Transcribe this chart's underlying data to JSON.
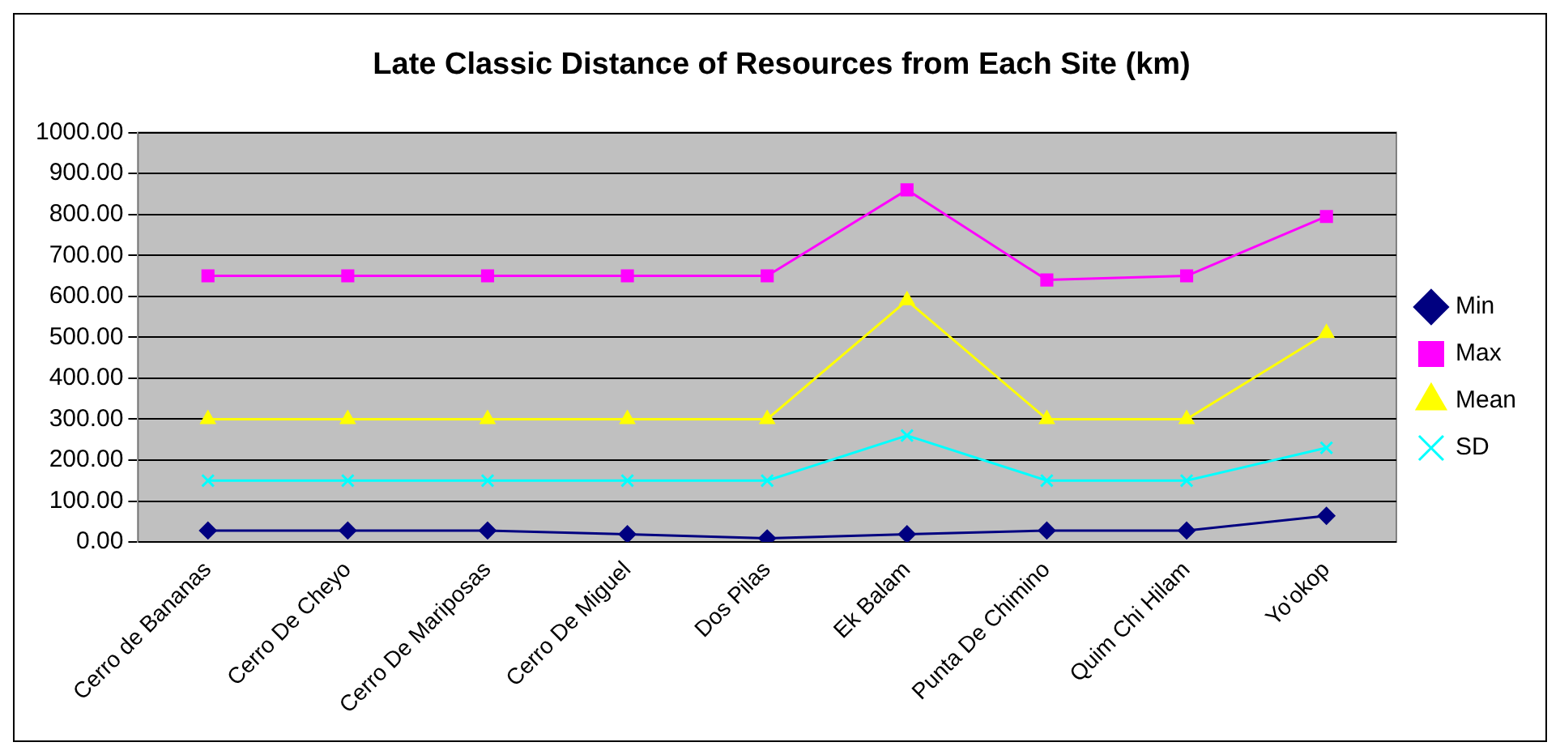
{
  "chart_data": {
    "type": "line",
    "title": "Late Classic Distance of Resources from Each Site (km)",
    "categories": [
      "Cerro de Bananas",
      "Cerro De Cheyo",
      "Cerro De Mariposas",
      "Cerro De Miguel",
      "Dos Pilas",
      "Ek Balam",
      "Punta De Chimino",
      "Quim Chi Hilam",
      "Yo'okop"
    ],
    "series": [
      {
        "name": "Min",
        "color": "#000080",
        "marker": "diamond",
        "values": [
          28,
          28,
          28,
          19,
          9,
          19,
          28,
          28,
          64
        ]
      },
      {
        "name": "Max",
        "color": "#ff00ff",
        "marker": "square",
        "values": [
          650,
          650,
          650,
          650,
          650,
          860,
          640,
          650,
          795
        ]
      },
      {
        "name": "Mean",
        "color": "#ffff00",
        "marker": "triangle",
        "values": [
          300,
          300,
          300,
          300,
          300,
          590,
          300,
          300,
          510
        ]
      },
      {
        "name": "SD",
        "color": "#00ffff",
        "marker": "cross",
        "values": [
          150,
          150,
          150,
          150,
          150,
          260,
          150,
          150,
          230
        ]
      }
    ],
    "ylim": [
      0,
      1000
    ],
    "yticks": [
      {
        "value": 0,
        "label": "0.00"
      },
      {
        "value": 100,
        "label": "100.00"
      },
      {
        "value": 200,
        "label": "200.00"
      },
      {
        "value": 300,
        "label": "300.00"
      },
      {
        "value": 400,
        "label": "400.00"
      },
      {
        "value": 500,
        "label": "500.00"
      },
      {
        "value": 600,
        "label": "600.00"
      },
      {
        "value": 700,
        "label": "700.00"
      },
      {
        "value": 800,
        "label": "800.00"
      },
      {
        "value": 900,
        "label": "900.00"
      },
      {
        "value": 1000,
        "label": "1000.00"
      }
    ],
    "grid": "y",
    "legend": "right"
  }
}
